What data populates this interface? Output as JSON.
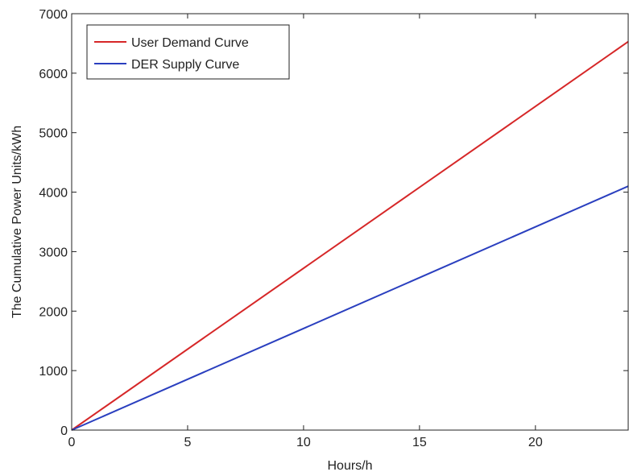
{
  "chart_data": {
    "type": "line",
    "xlabel": "Hours/h",
    "ylabel": "The Cumulative Power Units/kWh",
    "xlim": [
      0,
      24
    ],
    "ylim": [
      0,
      7000
    ],
    "xticks": [
      0,
      5,
      10,
      15,
      20
    ],
    "yticks": [
      0,
      1000,
      2000,
      3000,
      4000,
      5000,
      6000,
      7000
    ],
    "grid": false,
    "legend_position": "top-left",
    "series": [
      {
        "name": "User Demand Curve",
        "color": "#d62728",
        "x": [
          0,
          24
        ],
        "y": [
          0,
          6530
        ]
      },
      {
        "name": "DER Supply Curve",
        "color": "#2a3fbf",
        "x": [
          0,
          24
        ],
        "y": [
          0,
          4100
        ]
      }
    ]
  }
}
